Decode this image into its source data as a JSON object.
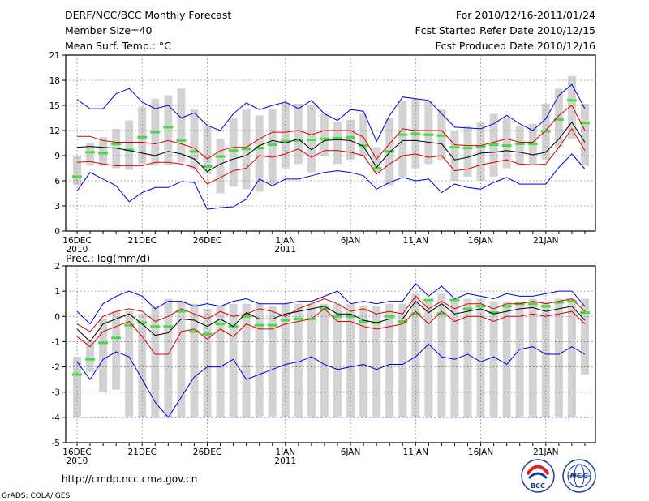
{
  "header": {
    "title": "DERF/NCC/BCC Monthly Forecast",
    "member_size": "Member Size=40",
    "variable": "Mean Surf. Temp.: °C",
    "period": "For 2010/12/16-2011/01/24",
    "start_date": "Fcst Started Refer Date 2010/12/15",
    "produced_date": "Fcst Produced Date 2010/12/16"
  },
  "footer": {
    "url": "http://cmdp.ncc.cma.gov.cn",
    "credit": "GrADS: COLA/IGES",
    "logo_left": "BCC",
    "logo_right": "NCC"
  },
  "colors": {
    "box": "#d3d3d3",
    "mean": "#000000",
    "spread": "#dd0000",
    "envelope": "#0000dd",
    "marker": "#44dd44",
    "grid": "#777777"
  },
  "chart_data": [
    {
      "type": "line",
      "title": "Mean Surf. Temp.: °C",
      "ylim": [
        0,
        21
      ],
      "yticks": [
        0,
        3,
        6,
        9,
        12,
        15,
        18,
        21
      ],
      "xtick_labels": [
        {
          "day": 0,
          "label": "16DEC",
          "year": "2010"
        },
        {
          "day": 5,
          "label": "21DEC"
        },
        {
          "day": 10,
          "label": "26DEC"
        },
        {
          "day": 16,
          "label": "1JAN",
          "year": "2011"
        },
        {
          "day": 21,
          "label": "6JAN"
        },
        {
          "day": 26,
          "label": "11JAN"
        },
        {
          "day": 31,
          "label": "16JAN"
        },
        {
          "day": 36,
          "label": "21JAN"
        }
      ],
      "x_days": [
        0,
        1,
        2,
        3,
        4,
        5,
        6,
        7,
        8,
        9,
        10,
        11,
        12,
        13,
        14,
        15,
        16,
        17,
        18,
        19,
        20,
        21,
        22,
        23,
        24,
        25,
        26,
        27,
        28,
        29,
        30,
        31,
        32,
        33,
        34,
        35,
        36,
        37,
        38,
        39
      ],
      "box_low": [
        5.5,
        7.8,
        7.8,
        7.5,
        7.3,
        8.0,
        7.8,
        7.9,
        8.2,
        7.3,
        6.8,
        4.5,
        5.3,
        5.0,
        4.7,
        5.6,
        7.5,
        8.0,
        7.0,
        9.0,
        8.0,
        8.5,
        9.0,
        7.0,
        5.5,
        6.5,
        7.5,
        8.0,
        8.5,
        6.0,
        6.5,
        6.0,
        6.5,
        7.5,
        7.8,
        7.8,
        8.5,
        10.0,
        11.0,
        7.8
      ],
      "box_high": [
        9.0,
        10.5,
        11.2,
        12.2,
        13.2,
        14.8,
        15.8,
        16.2,
        17.0,
        14.5,
        12.5,
        11.0,
        13.5,
        14.5,
        13.8,
        14.5,
        15.3,
        15.2,
        15.0,
        14.0,
        13.0,
        13.3,
        14.0,
        10.0,
        13.5,
        15.5,
        15.8,
        15.5,
        14.5,
        12.0,
        12.5,
        13.0,
        14.0,
        13.5,
        12.5,
        12.8,
        15.2,
        17.0,
        18.5,
        15.2
      ],
      "marker": [
        6.5,
        9.4,
        9.3,
        10.4,
        9.7,
        11.2,
        11.8,
        12.4,
        10.8,
        9.5,
        7.7,
        8.9,
        9.6,
        9.8,
        9.9,
        10.3,
        10.7,
        10.8,
        10.9,
        11.0,
        11.1,
        11.2,
        10.2,
        7.5,
        9.5,
        11.5,
        11.6,
        11.5,
        11.4,
        10.0,
        9.9,
        10.1,
        10.3,
        10.2,
        10.4,
        10.4,
        11.9,
        13.3,
        15.6,
        12.9
      ],
      "series": [
        {
          "name": "envelope_high",
          "values": [
            15.7,
            14.6,
            14.6,
            16.4,
            17.0,
            15.4,
            14.6,
            15.0,
            13.5,
            14.1,
            12.6,
            12.0,
            14.0,
            15.3,
            14.5,
            15.0,
            15.4,
            14.6,
            15.6,
            14.0,
            13.2,
            14.5,
            14.3,
            10.7,
            13.8,
            16.0,
            15.8,
            15.6,
            14.0,
            12.4,
            12.3,
            12.2,
            12.8,
            13.8,
            12.8,
            12.0,
            13.4,
            16.2,
            17.5,
            14.6
          ]
        },
        {
          "name": "spread_high",
          "values": [
            11.3,
            11.3,
            10.8,
            10.6,
            10.6,
            10.6,
            10.4,
            10.8,
            10.4,
            9.9,
            8.6,
            9.6,
            10.0,
            10.0,
            11.0,
            11.8,
            11.8,
            12.0,
            11.5,
            12.0,
            12.0,
            12.0,
            11.2,
            8.6,
            10.4,
            12.2,
            12.0,
            12.0,
            12.0,
            10.3,
            10.2,
            10.2,
            10.6,
            11.0,
            10.6,
            10.6,
            12.0,
            13.8,
            15.0,
            12.0
          ]
        },
        {
          "name": "mean",
          "values": [
            10.0,
            10.1,
            10.0,
            9.9,
            9.6,
            9.3,
            9.0,
            9.5,
            9.2,
            8.6,
            7.1,
            8.0,
            8.6,
            9.0,
            10.2,
            10.8,
            10.5,
            11.0,
            9.7,
            10.8,
            10.9,
            10.8,
            10.1,
            7.6,
            9.4,
            10.8,
            10.8,
            10.6,
            10.4,
            8.5,
            8.8,
            9.3,
            9.4,
            9.6,
            9.4,
            9.1,
            9.4,
            11.0,
            13.0,
            10.6
          ]
        },
        {
          "name": "spread_low",
          "values": [
            8.2,
            8.3,
            8.0,
            7.8,
            7.8,
            7.8,
            8.2,
            8.2,
            8.0,
            7.6,
            5.6,
            6.4,
            7.2,
            7.5,
            9.0,
            8.8,
            9.2,
            9.8,
            8.8,
            9.6,
            9.6,
            9.4,
            9.0,
            6.8,
            8.0,
            9.0,
            9.2,
            8.8,
            9.0,
            7.2,
            7.4,
            7.9,
            8.2,
            8.5,
            8.0,
            7.9,
            8.0,
            10.0,
            12.2,
            9.6
          ]
        },
        {
          "name": "envelope_low",
          "values": [
            4.8,
            7.0,
            6.2,
            5.4,
            3.5,
            4.6,
            5.2,
            5.2,
            5.9,
            5.8,
            2.6,
            2.8,
            2.9,
            3.8,
            6.2,
            5.4,
            6.2,
            6.2,
            6.6,
            7.0,
            7.2,
            7.0,
            6.6,
            5.0,
            5.8,
            6.4,
            6.0,
            6.2,
            4.6,
            5.6,
            5.2,
            5.0,
            5.8,
            6.4,
            5.6,
            5.6,
            5.6,
            7.6,
            9.2,
            7.4
          ]
        }
      ]
    },
    {
      "type": "line",
      "title": "Prec.: log(mm/d)",
      "ylim": [
        -5,
        2
      ],
      "yticks": [
        -5,
        -4,
        -3,
        -2,
        -1,
        0,
        1,
        2
      ],
      "xtick_labels": [
        {
          "day": 0,
          "label": "16DEC",
          "year": "2010"
        },
        {
          "day": 5,
          "label": "21DEC"
        },
        {
          "day": 10,
          "label": "26DEC"
        },
        {
          "day": 16,
          "label": "1JAN",
          "year": "2011"
        },
        {
          "day": 21,
          "label": "6JAN"
        },
        {
          "day": 26,
          "label": "11JAN"
        },
        {
          "day": 31,
          "label": "16JAN"
        },
        {
          "day": 36,
          "label": "21JAN"
        }
      ],
      "x_days": [
        0,
        1,
        2,
        3,
        4,
        5,
        6,
        7,
        8,
        9,
        10,
        11,
        12,
        13,
        14,
        15,
        16,
        17,
        18,
        19,
        20,
        21,
        22,
        23,
        24,
        25,
        26,
        27,
        28,
        29,
        30,
        31,
        32,
        33,
        34,
        35,
        36,
        37,
        38,
        39
      ],
      "box_low": [
        -4.0,
        -2.2,
        -3.0,
        -2.9,
        -4.0,
        -4.0,
        -4.0,
        -4.0,
        -4.0,
        -4.0,
        -4.0,
        -4.0,
        -4.0,
        -4.0,
        -4.0,
        -4.0,
        -4.0,
        -4.0,
        -4.0,
        -4.0,
        -4.0,
        -4.0,
        -4.0,
        -4.0,
        -4.0,
        -4.0,
        -4.0,
        -4.0,
        -4.0,
        -4.0,
        -4.0,
        -4.0,
        -4.0,
        -4.0,
        -4.0,
        -4.0,
        -4.0,
        -4.0,
        -4.0,
        -2.3
      ],
      "box_high": [
        -1.6,
        -1.0,
        -0.1,
        0.2,
        0.2,
        0.1,
        0.4,
        0.7,
        0.6,
        0.5,
        0.3,
        0.4,
        0.5,
        0.5,
        0.5,
        0.4,
        0.5,
        0.5,
        0.5,
        0.5,
        0.5,
        0.5,
        0.4,
        0.4,
        0.5,
        0.5,
        0.9,
        0.7,
        0.9,
        0.6,
        0.7,
        0.7,
        0.6,
        0.6,
        0.6,
        0.7,
        0.6,
        0.7,
        0.7,
        0.7
      ],
      "marker": [
        -2.3,
        -1.7,
        -1.05,
        -0.85,
        -0.35,
        -0.25,
        -0.4,
        -0.4,
        0.2,
        -0.6,
        -0.7,
        -0.3,
        -0.4,
        0.0,
        -0.35,
        -0.35,
        -0.15,
        -0.1,
        -0.1,
        0.3,
        0.0,
        0.0,
        -0.2,
        -0.25,
        0.0,
        -0.2,
        0.1,
        0.65,
        0.1,
        0.65,
        0.3,
        0.4,
        0.15,
        0.4,
        0.5,
        0.5,
        0.4,
        0.55,
        0.6,
        0.15
      ],
      "series": [
        {
          "name": "envelope_high",
          "values": [
            0.2,
            -0.3,
            0.5,
            0.8,
            1.0,
            0.8,
            0.3,
            0.6,
            0.6,
            0.4,
            0.5,
            0.4,
            0.6,
            0.7,
            0.5,
            0.5,
            0.5,
            0.6,
            0.6,
            0.8,
            1.0,
            0.5,
            0.6,
            0.5,
            0.6,
            0.6,
            1.3,
            0.8,
            1.2,
            0.7,
            0.9,
            0.8,
            0.7,
            0.9,
            0.8,
            0.8,
            0.9,
            1.0,
            1.0,
            0.4
          ]
        },
        {
          "name": "spread_high",
          "values": [
            -0.3,
            -0.6,
            0.0,
            0.2,
            0.3,
            0.2,
            -0.2,
            0.0,
            0.3,
            0.1,
            -0.1,
            0.2,
            0.0,
            0.1,
            0.3,
            0.2,
            0.0,
            0.3,
            0.5,
            0.7,
            0.5,
            0.2,
            0.3,
            0.1,
            0.2,
            0.1,
            0.8,
            0.3,
            0.6,
            0.3,
            0.5,
            0.5,
            0.3,
            0.5,
            0.5,
            0.6,
            0.5,
            0.6,
            0.7,
            0.2
          ]
        },
        {
          "name": "mean",
          "values": [
            -0.5,
            -1.0,
            -0.3,
            -0.1,
            0.1,
            -0.3,
            -0.75,
            -0.65,
            -0.1,
            -0.15,
            -0.4,
            -0.1,
            -0.4,
            0.15,
            -0.1,
            -0.1,
            0.1,
            0.2,
            0.3,
            0.4,
            0.1,
            0.1,
            -0.15,
            -0.25,
            -0.1,
            -0.1,
            0.6,
            0.15,
            0.5,
            0.1,
            0.2,
            0.3,
            0.1,
            0.2,
            0.3,
            0.35,
            0.2,
            0.3,
            0.4,
            -0.15
          ]
        },
        {
          "name": "spread_low",
          "values": [
            -0.8,
            -1.2,
            -0.6,
            -0.4,
            -0.2,
            -0.8,
            -1.5,
            -1.5,
            -0.6,
            -0.5,
            -0.9,
            -0.5,
            -0.8,
            -0.3,
            -0.5,
            -0.5,
            -0.3,
            -0.2,
            -0.1,
            0.3,
            -0.2,
            -0.2,
            -0.4,
            -0.5,
            -0.4,
            -0.3,
            0.2,
            -0.3,
            0.2,
            -0.2,
            0.0,
            0.0,
            -0.2,
            0.0,
            0.0,
            0.1,
            0.0,
            0.1,
            0.2,
            -0.3
          ]
        },
        {
          "name": "envelope_low",
          "values": [
            -1.8,
            -2.5,
            -1.7,
            -1.4,
            -1.6,
            -2.5,
            -3.4,
            -4.0,
            -3.2,
            -2.4,
            -2.0,
            -2.0,
            -1.7,
            -2.5,
            -2.3,
            -2.1,
            -1.9,
            -1.8,
            -1.6,
            -1.9,
            -2.1,
            -2.0,
            -1.9,
            -2.1,
            -1.9,
            -1.9,
            -1.6,
            -1.1,
            -1.6,
            -1.7,
            -1.5,
            -1.8,
            -1.6,
            -1.9,
            -1.3,
            -1.2,
            -1.5,
            -1.5,
            -1.2,
            -1.5
          ]
        }
      ]
    }
  ]
}
